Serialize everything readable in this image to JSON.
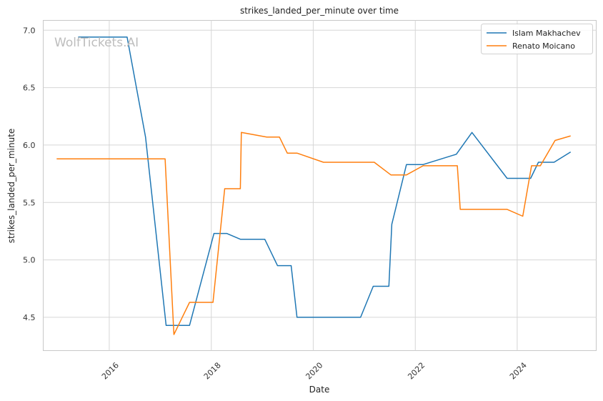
{
  "chart_data": {
    "type": "line",
    "title": "strikes_landed_per_minute over time",
    "xlabel": "Date",
    "ylabel": "strikes_landed_per_minute",
    "watermark": "WolfTickets.AI",
    "xlim": [
      "2014-09-15",
      "2025-07-20"
    ],
    "ylim": [
      4.21,
      7.0858
    ],
    "x_ticks": [
      "2016-01-01",
      "2018-01-01",
      "2020-01-01",
      "2022-01-01",
      "2024-01-01"
    ],
    "x_tick_labels": [
      "2016",
      "2018",
      "2020",
      "2022",
      "2024"
    ],
    "y_ticks": [
      4.5,
      5.0,
      5.5,
      6.0,
      6.5,
      7.0
    ],
    "y_tick_labels": [
      "4.5",
      "5.0",
      "5.5",
      "6.0",
      "6.5",
      "7.0"
    ],
    "grid": true,
    "legend_position": "top-right",
    "series": [
      {
        "name": "Islam Makhachev",
        "color": "#1f77b4",
        "points": [
          [
            "2015-05-23",
            6.94
          ],
          [
            "2016-05-08",
            6.94
          ],
          [
            "2016-09-17",
            6.07
          ],
          [
            "2017-02-11",
            4.43
          ],
          [
            "2017-07-29",
            4.43
          ],
          [
            "2018-01-20",
            5.23
          ],
          [
            "2018-04-21",
            5.23
          ],
          [
            "2018-07-28",
            5.18
          ],
          [
            "2019-01-19",
            5.18
          ],
          [
            "2019-04-20",
            4.95
          ],
          [
            "2019-07-27",
            4.95
          ],
          [
            "2019-09-07",
            4.5
          ],
          [
            "2020-12-05",
            4.5
          ],
          [
            "2021-03-06",
            4.77
          ],
          [
            "2021-06-26",
            4.77
          ],
          [
            "2021-07-17",
            5.31
          ],
          [
            "2021-10-30",
            5.83
          ],
          [
            "2022-02-26",
            5.83
          ],
          [
            "2022-10-22",
            5.92
          ],
          [
            "2023-02-11",
            6.11
          ],
          [
            "2023-10-21",
            5.71
          ],
          [
            "2024-04-06",
            5.71
          ],
          [
            "2024-06-01",
            5.85
          ],
          [
            "2024-09-21",
            5.85
          ],
          [
            "2025-01-18",
            5.94
          ]
        ]
      },
      {
        "name": "Renato Moicano",
        "color": "#ff7f0e",
        "points": [
          [
            "2014-12-20",
            5.88
          ],
          [
            "2017-02-04",
            5.88
          ],
          [
            "2017-04-08",
            4.35
          ],
          [
            "2017-07-29",
            4.63
          ],
          [
            "2018-01-13",
            4.63
          ],
          [
            "2018-04-07",
            5.62
          ],
          [
            "2018-07-28",
            5.62
          ],
          [
            "2018-08-04",
            6.11
          ],
          [
            "2019-02-02",
            6.07
          ],
          [
            "2019-05-04",
            6.07
          ],
          [
            "2019-06-29",
            5.93
          ],
          [
            "2019-09-07",
            5.93
          ],
          [
            "2020-03-14",
            5.85
          ],
          [
            "2021-03-13",
            5.85
          ],
          [
            "2021-07-10",
            5.74
          ],
          [
            "2021-10-30",
            5.74
          ],
          [
            "2022-02-26",
            5.82
          ],
          [
            "2022-10-29",
            5.82
          ],
          [
            "2022-11-19",
            5.44
          ],
          [
            "2023-10-21",
            5.44
          ],
          [
            "2024-02-10",
            5.38
          ],
          [
            "2024-04-13",
            5.82
          ],
          [
            "2024-06-15",
            5.82
          ],
          [
            "2024-09-28",
            6.04
          ],
          [
            "2025-01-18",
            6.08
          ]
        ]
      }
    ]
  }
}
